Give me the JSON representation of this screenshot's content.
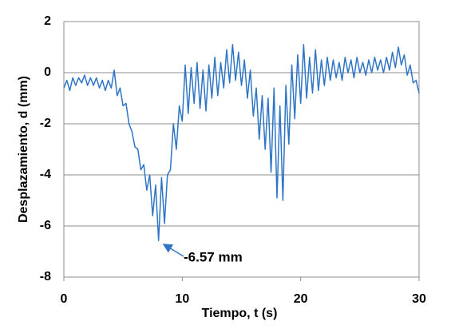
{
  "chart_data": {
    "type": "line",
    "xlabel": "Tiempo, t (s)",
    "ylabel": "Desplazamiento, d (mm)",
    "annotation": "-6.57 mm",
    "color": "#2e75c6",
    "xlim": [
      0,
      30
    ],
    "xticks": [
      0,
      10,
      20,
      30
    ],
    "ylim": [
      -8,
      2
    ],
    "yticks": [
      -8,
      -6,
      -4,
      -2,
      0,
      2
    ],
    "grid": true,
    "x": [
      0,
      0.25,
      0.5,
      0.75,
      1,
      1.25,
      1.5,
      1.75,
      2,
      2.25,
      2.5,
      2.75,
      3,
      3.25,
      3.5,
      3.75,
      4,
      4.25,
      4.5,
      4.75,
      5,
      5.25,
      5.5,
      5.75,
      6,
      6.25,
      6.5,
      6.75,
      7,
      7.25,
      7.5,
      7.75,
      8,
      8.25,
      8.5,
      8.75,
      9,
      9.25,
      9.5,
      9.75,
      10,
      10.25,
      10.5,
      10.75,
      11,
      11.25,
      11.5,
      11.75,
      12,
      12.25,
      12.5,
      12.75,
      13,
      13.25,
      13.5,
      13.75,
      14,
      14.25,
      14.5,
      14.75,
      15,
      15.25,
      15.5,
      15.75,
      16,
      16.25,
      16.5,
      16.75,
      17,
      17.25,
      17.5,
      17.75,
      18,
      18.25,
      18.5,
      18.75,
      19,
      19.25,
      19.5,
      19.75,
      20,
      20.25,
      20.5,
      20.75,
      21,
      21.25,
      21.5,
      21.75,
      22,
      22.25,
      22.5,
      22.75,
      23,
      23.25,
      23.5,
      23.75,
      24,
      24.25,
      24.5,
      24.75,
      25,
      25.25,
      25.5,
      25.75,
      26,
      26.25,
      26.5,
      26.75,
      27,
      27.25,
      27.5,
      27.75,
      28,
      28.25,
      28.5,
      28.75,
      29,
      29.25,
      29.5,
      29.75,
      30
    ],
    "values": [
      -0.6,
      -0.3,
      -0.7,
      -0.2,
      -0.5,
      -0.2,
      -0.4,
      -0.1,
      -0.5,
      -0.2,
      -0.5,
      -0.2,
      -0.6,
      -0.3,
      -0.7,
      -0.3,
      -0.6,
      0.1,
      -0.9,
      -0.6,
      -1.3,
      -1.2,
      -2.0,
      -2.3,
      -2.9,
      -3.0,
      -3.8,
      -3.6,
      -4.6,
      -4.0,
      -5.6,
      -4.4,
      -6.57,
      -4.1,
      -5.9,
      -4.0,
      -3.8,
      -2.0,
      -3.0,
      -1.3,
      -1.9,
      0.3,
      -1.6,
      0.2,
      -1.2,
      0.4,
      -1.4,
      0.1,
      -1.5,
      0.3,
      -1.0,
      0.6,
      -0.9,
      0.4,
      -0.6,
      0.9,
      -0.4,
      1.1,
      -0.3,
      0.8,
      -0.5,
      0.5,
      -1.0,
      0.1,
      -1.7,
      -0.6,
      -2.6,
      -0.9,
      -3.0,
      -1.0,
      -3.9,
      -0.6,
      -4.9,
      -1.3,
      -5.0,
      -0.5,
      -2.8,
      0.3,
      -1.8,
      0.7,
      -1.2,
      1.1,
      -1.0,
      0.6,
      -0.8,
      0.9,
      -0.7,
      0.5,
      -0.5,
      0.6,
      -0.3,
      0.5,
      -0.2,
      0.4,
      -0.3,
      0.6,
      0.0,
      0.5,
      -0.2,
      0.6,
      0.0,
      0.4,
      -0.1,
      0.5,
      0.0,
      0.6,
      0.1,
      0.5,
      0.0,
      0.6,
      0.1,
      0.8,
      0.2,
      1.0,
      0.3,
      0.7,
      -0.1,
      0.3,
      -0.4,
      -0.3,
      -0.8
    ]
  }
}
